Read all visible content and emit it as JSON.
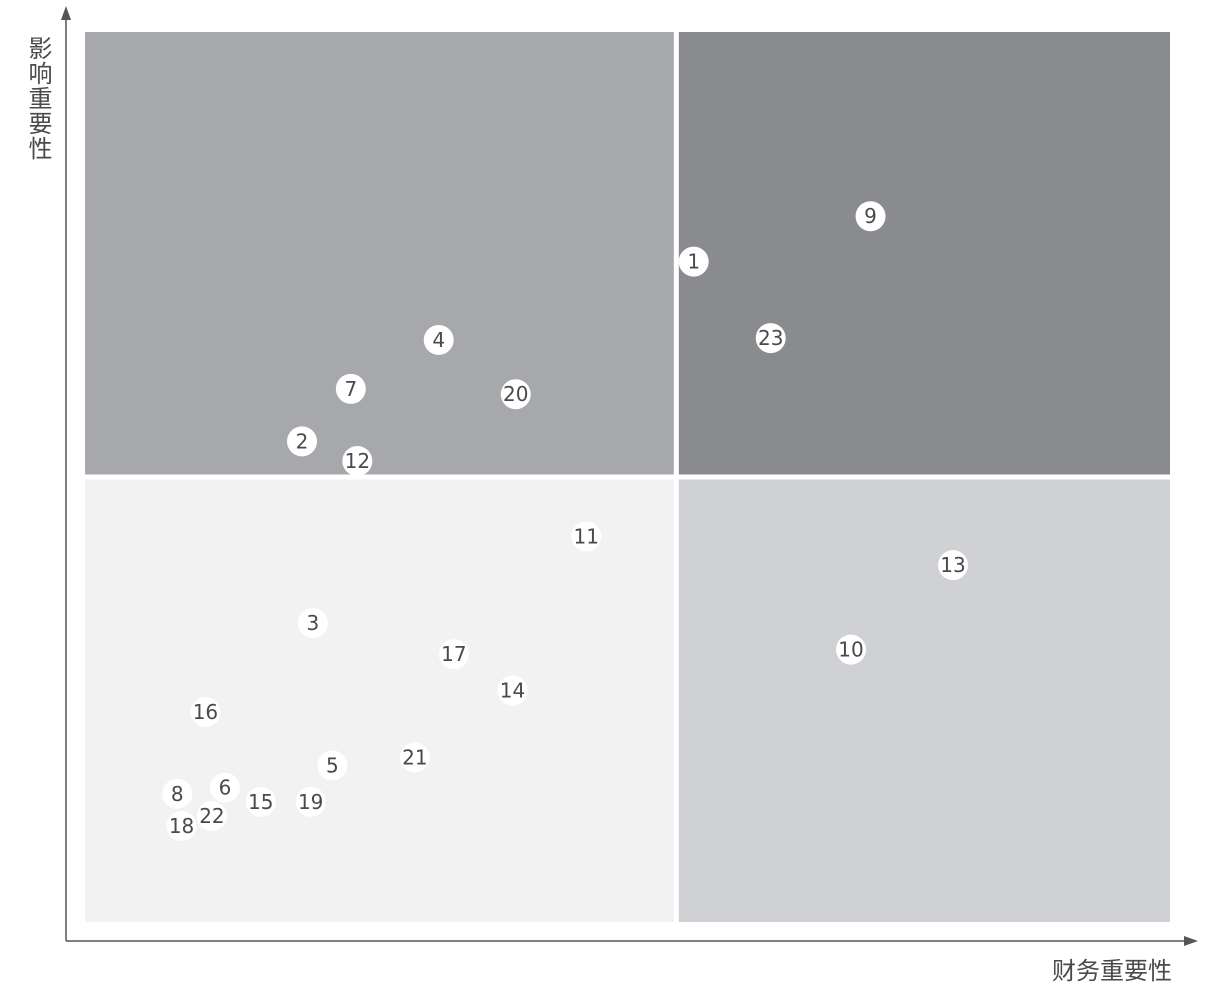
{
  "chart_data": {
    "type": "scatter",
    "xlabel": "财务重要性",
    "ylabel": "影响重要性",
    "xlim": [
      0,
      100
    ],
    "ylim": [
      0,
      100
    ],
    "quadrant_split": {
      "x": 54.5,
      "y": 50
    },
    "quadrant_colors": {
      "top_left": "#a7a8ab",
      "top_right": "#8a8b8f",
      "bottom_left": "#f2f2f3",
      "bottom_right": "#d0d1d4"
    },
    "points": [
      {
        "label": "1",
        "x": 56.1,
        "y": 74.2
      },
      {
        "label": "2",
        "x": 20.0,
        "y": 54.0
      },
      {
        "label": "3",
        "x": 21.0,
        "y": 33.6
      },
      {
        "label": "4",
        "x": 32.6,
        "y": 65.4
      },
      {
        "label": "5",
        "x": 22.8,
        "y": 17.6
      },
      {
        "label": "6",
        "x": 12.9,
        "y": 15.1
      },
      {
        "label": "7",
        "x": 24.5,
        "y": 59.9
      },
      {
        "label": "8",
        "x": 8.5,
        "y": 14.4
      },
      {
        "label": "9",
        "x": 72.4,
        "y": 79.3
      },
      {
        "label": "10",
        "x": 70.6,
        "y": 30.6
      },
      {
        "label": "11",
        "x": 46.2,
        "y": 43.3
      },
      {
        "label": "12",
        "x": 25.1,
        "y": 51.8
      },
      {
        "label": "13",
        "x": 80.0,
        "y": 40.1
      },
      {
        "label": "14",
        "x": 39.4,
        "y": 26.0
      },
      {
        "label": "15",
        "x": 16.2,
        "y": 13.5
      },
      {
        "label": "16",
        "x": 11.1,
        "y": 23.6
      },
      {
        "label": "17",
        "x": 34.0,
        "y": 30.1
      },
      {
        "label": "18",
        "x": 8.9,
        "y": 10.8
      },
      {
        "label": "19",
        "x": 20.8,
        "y": 13.5
      },
      {
        "label": "20",
        "x": 39.7,
        "y": 59.3
      },
      {
        "label": "21",
        "x": 30.4,
        "y": 18.5
      },
      {
        "label": "22",
        "x": 11.7,
        "y": 11.9
      },
      {
        "label": "23",
        "x": 63.2,
        "y": 65.6
      }
    ]
  }
}
